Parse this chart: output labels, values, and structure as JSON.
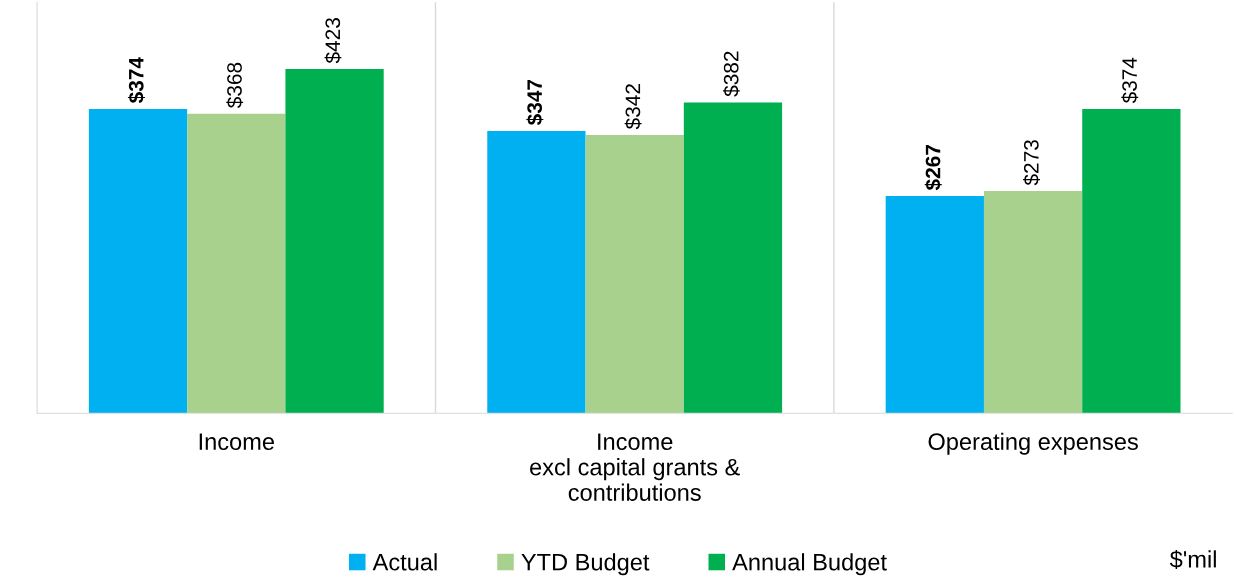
{
  "chart_data": {
    "type": "bar",
    "categories": [
      "Income",
      "Income\nexcl capital grants &\ncontributions",
      "Operating expenses"
    ],
    "series": [
      {
        "name": "Actual",
        "color": "#00b0f0",
        "values": [
          374,
          347,
          267
        ],
        "value_labels": [
          "$374",
          "$347",
          "$267"
        ]
      },
      {
        "name": "YTD Budget",
        "color": "#a9d18e",
        "values": [
          368,
          342,
          273
        ],
        "value_labels": [
          "$368",
          "$342",
          "$273"
        ]
      },
      {
        "name": "Annual Budget",
        "color": "#00b050",
        "values": [
          423,
          382,
          374
        ],
        "value_labels": [
          "$423",
          "$382",
          "$374"
        ]
      }
    ],
    "ylim": [
      0,
      505
    ],
    "tick_labels": "x",
    "grid": false,
    "legend": "bottom",
    "annotations": [
      "$'mil"
    ]
  }
}
